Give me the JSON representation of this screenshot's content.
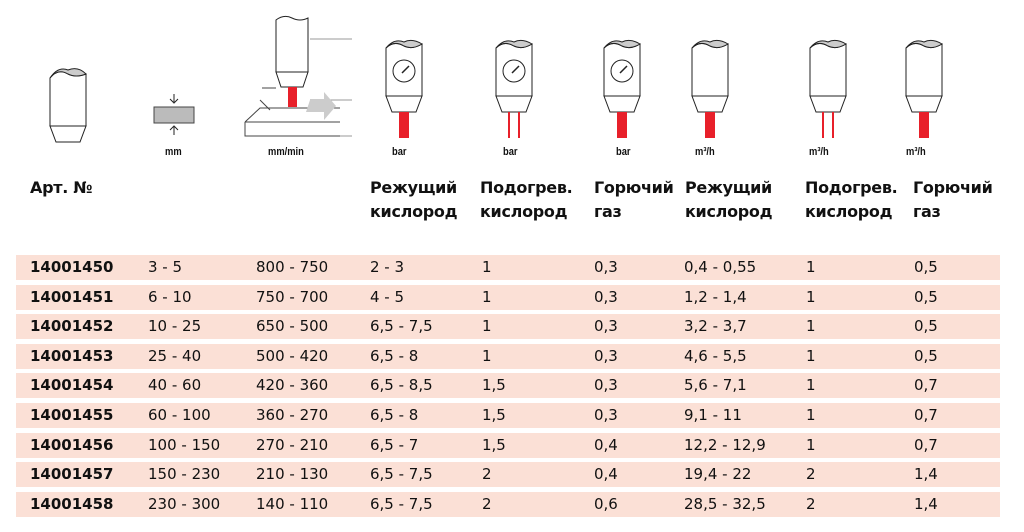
{
  "units": [
    "mm",
    "mm/min",
    "bar",
    "bar",
    "bar",
    "m³/h",
    "m³/h",
    "m³/h"
  ],
  "headers": [
    {
      "l1": "Арт. №",
      "l2": ""
    },
    {
      "l1": "Режущий",
      "l2": "кислород"
    },
    {
      "l1": "Подогрев.",
      "l2": "кислород"
    },
    {
      "l1": "Горючий",
      "l2": "газ"
    },
    {
      "l1": "Режущий",
      "l2": "кислород"
    },
    {
      "l1": "Подогрев.",
      "l2": "кислород"
    },
    {
      "l1": "Горючий",
      "l2": "газ"
    }
  ],
  "rows": [
    [
      "14001450",
      "3 - 5",
      "800 - 750",
      "2 - 3",
      "1",
      "0,3",
      "0,4 - 0,55",
      "1",
      "0,5"
    ],
    [
      "14001451",
      "6 - 10",
      "750 - 700",
      "4 - 5",
      "1",
      "0,3",
      "1,2 - 1,4",
      "1",
      "0,5"
    ],
    [
      "14001452",
      "10 - 25",
      "650 - 500",
      "6,5 - 7,5",
      "1",
      "0,3",
      "3,2 - 3,7",
      "1",
      "0,5"
    ],
    [
      "14001453",
      "25 - 40",
      "500 - 420",
      "6,5 - 8",
      "1",
      "0,3",
      "4,6 - 5,5",
      "1",
      "0,5"
    ],
    [
      "14001454",
      "40 - 60",
      "420 - 360",
      "6,5 - 8,5",
      "1,5",
      "0,3",
      "5,6 - 7,1",
      "1",
      "0,7"
    ],
    [
      "14001455",
      "60 - 100",
      "360 - 270",
      "6,5 - 8",
      "1,5",
      "0,3",
      "9,1 - 11",
      "1",
      "0,7"
    ],
    [
      "14001456",
      "100 - 150",
      "270 - 210",
      "6,5 - 7",
      "1,5",
      "0,4",
      "12,2 - 12,9",
      "1",
      "0,7"
    ],
    [
      "14001457",
      "150 - 230",
      "210 - 130",
      "6,5 - 7,5",
      "2",
      "0,4",
      "19,4 - 22",
      "2",
      "1,4"
    ],
    [
      "14001458",
      "230 - 300",
      "140 - 110",
      "6,5 - 7,5",
      "2",
      "0,6",
      "28,5 - 32,5",
      "2",
      "1,4"
    ]
  ],
  "colors": {
    "row_bg": "#fbe0d6",
    "flame": "#e8202a"
  }
}
